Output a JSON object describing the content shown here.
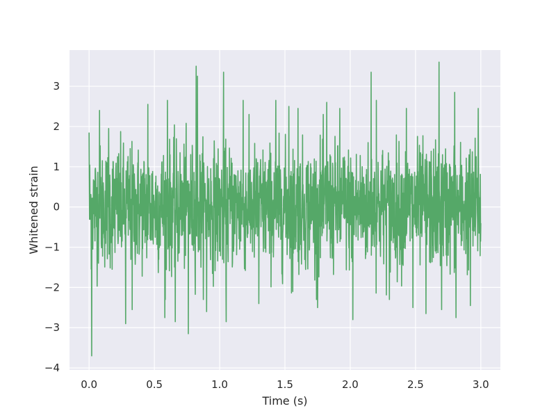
{
  "chart_data": {
    "type": "line",
    "title": "",
    "xlabel": "Time (s)",
    "ylabel": "Whitened strain",
    "xlim": [
      -0.15,
      3.15
    ],
    "ylim": [
      -4.05,
      3.9
    ],
    "x_ticks": [
      0.0,
      0.5,
      1.0,
      1.5,
      2.0,
      2.5,
      3.0
    ],
    "x_tick_labels": [
      "0.0",
      "0.5",
      "1.0",
      "1.5",
      "2.0",
      "2.5",
      "3.0"
    ],
    "y_ticks": [
      -4,
      -3,
      -2,
      -1,
      0,
      1,
      2,
      3
    ],
    "y_tick_labels": [
      "−4",
      "−3",
      "−2",
      "−1",
      "0",
      "1",
      "2",
      "3"
    ],
    "grid": true,
    "background": "#EAEAF2",
    "grid_color": "#FFFFFF",
    "series": [
      {
        "color": "#55A868",
        "x_start": 0.0,
        "x_end": 3.0,
        "noise_sigma": 0.75,
        "peaks": [
          {
            "x": 0.0,
            "y": 1.85
          },
          {
            "x": 0.02,
            "y": -3.7
          },
          {
            "x": 0.08,
            "y": 2.4
          },
          {
            "x": 0.15,
            "y": 1.95
          },
          {
            "x": 0.28,
            "y": -2.9
          },
          {
            "x": 0.33,
            "y": -2.55
          },
          {
            "x": 0.45,
            "y": 2.55
          },
          {
            "x": 0.58,
            "y": -2.75
          },
          {
            "x": 0.6,
            "y": 2.65
          },
          {
            "x": 0.66,
            "y": -2.85
          },
          {
            "x": 0.76,
            "y": -3.15
          },
          {
            "x": 0.82,
            "y": 3.5
          },
          {
            "x": 0.83,
            "y": 3.25
          },
          {
            "x": 0.9,
            "y": -2.6
          },
          {
            "x": 1.03,
            "y": 3.35
          },
          {
            "x": 1.05,
            "y": -2.85
          },
          {
            "x": 1.18,
            "y": 2.65
          },
          {
            "x": 1.3,
            "y": -2.4
          },
          {
            "x": 1.43,
            "y": 2.65
          },
          {
            "x": 1.53,
            "y": 2.5
          },
          {
            "x": 1.56,
            "y": -2.1
          },
          {
            "x": 1.6,
            "y": 2.45
          },
          {
            "x": 1.75,
            "y": -2.5
          },
          {
            "x": 1.82,
            "y": 2.6
          },
          {
            "x": 1.92,
            "y": 2.45
          },
          {
            "x": 2.02,
            "y": -2.8
          },
          {
            "x": 2.16,
            "y": 3.35
          },
          {
            "x": 2.2,
            "y": 2.65
          },
          {
            "x": 2.3,
            "y": -2.3
          },
          {
            "x": 2.43,
            "y": 2.45
          },
          {
            "x": 2.48,
            "y": -2.5
          },
          {
            "x": 2.58,
            "y": -2.65
          },
          {
            "x": 2.68,
            "y": 3.6
          },
          {
            "x": 2.7,
            "y": -2.55
          },
          {
            "x": 2.8,
            "y": 2.85
          },
          {
            "x": 2.81,
            "y": -2.75
          },
          {
            "x": 2.92,
            "y": -2.45
          },
          {
            "x": 2.98,
            "y": 2.45
          },
          {
            "x": 3.0,
            "y": -0.4
          }
        ]
      }
    ]
  }
}
